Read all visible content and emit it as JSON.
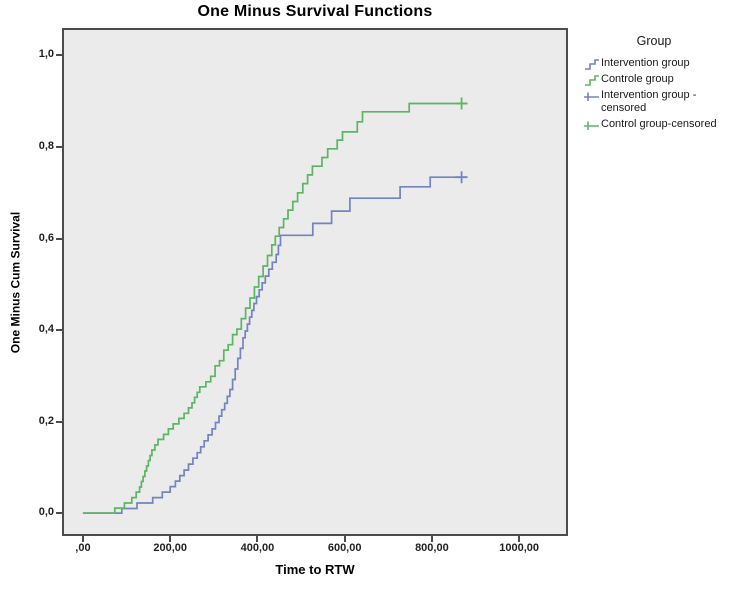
{
  "chart": {
    "title": "One Minus Survival Functions",
    "xlabel": "Time to RTW",
    "ylabel": "One Minus Cum Survival"
  },
  "legend": {
    "title": "Group",
    "items": [
      {
        "label": "Intervention group",
        "icon": "step-line-icon",
        "type": "step",
        "color": "#7283c1"
      },
      {
        "label": "Controle group",
        "icon": "step-line-icon",
        "type": "step",
        "color": "#5bb563"
      },
      {
        "label": "Intervention group - censored",
        "icon": "censored-plus-icon",
        "type": "censored",
        "color": "#7283c1"
      },
      {
        "label": "Control group-censored",
        "icon": "censored-plus-icon",
        "type": "censored",
        "color": "#5bb563"
      }
    ]
  },
  "colors": {
    "plot_background": "#ebebeb",
    "frame": "#4c4c4c",
    "intervention_blue": "#7283c1",
    "control_green": "#5bb563"
  },
  "chart_data": {
    "type": "line",
    "subtype": "step-survival",
    "title": "One Minus Survival Functions",
    "xlabel": "Time to RTW",
    "ylabel": "One Minus Cum Survival",
    "legend_title": "Group",
    "legend_position": "right",
    "grid": false,
    "x_domain": [
      -48,
      1112
    ],
    "y_domain": [
      -0.05,
      1.06
    ],
    "x_ticks": {
      "values": [
        0,
        200,
        400,
        600,
        800,
        1000
      ],
      "labels": [
        ",00",
        "200,00",
        "400,00",
        "600,00",
        "800,00",
        "1000,00"
      ]
    },
    "y_ticks": {
      "values": [
        0.0,
        0.2,
        0.4,
        0.6,
        0.8,
        1.0
      ],
      "labels": [
        "0,0",
        "0,2",
        "0,4",
        "0,6",
        "0,8",
        "1,0"
      ]
    },
    "series": [
      {
        "name": "Intervention group",
        "color": "#7283c1",
        "end": 880,
        "censored": [
          [
            868,
            0.734
          ]
        ],
        "steps": [
          [
            0,
            0
          ],
          [
            89,
            0.01
          ],
          [
            124,
            0.022
          ],
          [
            160,
            0.034
          ],
          [
            182,
            0.046
          ],
          [
            200,
            0.058
          ],
          [
            212,
            0.07
          ],
          [
            222,
            0.082
          ],
          [
            232,
            0.094
          ],
          [
            242,
            0.107
          ],
          [
            252,
            0.12
          ],
          [
            262,
            0.132
          ],
          [
            270,
            0.145
          ],
          [
            278,
            0.158
          ],
          [
            287,
            0.171
          ],
          [
            296,
            0.184
          ],
          [
            304,
            0.198
          ],
          [
            312,
            0.212
          ],
          [
            318,
            0.226
          ],
          [
            325,
            0.24
          ],
          [
            331,
            0.255
          ],
          [
            337,
            0.27
          ],
          [
            343,
            0.292
          ],
          [
            349,
            0.315
          ],
          [
            355,
            0.338
          ],
          [
            361,
            0.36
          ],
          [
            367,
            0.383
          ],
          [
            372,
            0.398
          ],
          [
            377,
            0.413
          ],
          [
            382,
            0.428
          ],
          [
            387,
            0.443
          ],
          [
            392,
            0.458
          ],
          [
            398,
            0.473
          ],
          [
            404,
            0.488
          ],
          [
            411,
            0.503
          ],
          [
            418,
            0.518
          ],
          [
            426,
            0.533
          ],
          [
            434,
            0.548
          ],
          [
            443,
            0.565
          ],
          [
            448,
            0.585
          ],
          [
            453,
            0.607
          ],
          [
            527,
            0.633
          ],
          [
            570,
            0.66
          ],
          [
            612,
            0.688
          ],
          [
            727,
            0.713
          ],
          [
            796,
            0.734
          ]
        ]
      },
      {
        "name": "Controle group",
        "color": "#5bb563",
        "end": 880,
        "censored": [
          [
            868,
            0.895
          ]
        ],
        "steps": [
          [
            0,
            0
          ],
          [
            73,
            0.011
          ],
          [
            95,
            0.022
          ],
          [
            112,
            0.034
          ],
          [
            122,
            0.046
          ],
          [
            130,
            0.057
          ],
          [
            134,
            0.069
          ],
          [
            138,
            0.08
          ],
          [
            142,
            0.092
          ],
          [
            146,
            0.103
          ],
          [
            150,
            0.115
          ],
          [
            154,
            0.126
          ],
          [
            158,
            0.138
          ],
          [
            165,
            0.149
          ],
          [
            172,
            0.161
          ],
          [
            185,
            0.172
          ],
          [
            196,
            0.184
          ],
          [
            207,
            0.195
          ],
          [
            220,
            0.207
          ],
          [
            232,
            0.218
          ],
          [
            242,
            0.23
          ],
          [
            250,
            0.241
          ],
          [
            256,
            0.253
          ],
          [
            262,
            0.264
          ],
          [
            268,
            0.276
          ],
          [
            282,
            0.287
          ],
          [
            293,
            0.299
          ],
          [
            303,
            0.322
          ],
          [
            313,
            0.333
          ],
          [
            323,
            0.356
          ],
          [
            333,
            0.368
          ],
          [
            343,
            0.39
          ],
          [
            353,
            0.402
          ],
          [
            363,
            0.425
          ],
          [
            373,
            0.448
          ],
          [
            383,
            0.47
          ],
          [
            393,
            0.494
          ],
          [
            403,
            0.517
          ],
          [
            413,
            0.54
          ],
          [
            423,
            0.563
          ],
          [
            433,
            0.586
          ],
          [
            441,
            0.605
          ],
          [
            450,
            0.624
          ],
          [
            460,
            0.643
          ],
          [
            470,
            0.662
          ],
          [
            481,
            0.681
          ],
          [
            492,
            0.7
          ],
          [
            504,
            0.72
          ],
          [
            515,
            0.739
          ],
          [
            526,
            0.758
          ],
          [
            548,
            0.777
          ],
          [
            561,
            0.796
          ],
          [
            583,
            0.815
          ],
          [
            595,
            0.833
          ],
          [
            629,
            0.855
          ],
          [
            641,
            0.877
          ],
          [
            748,
            0.895
          ]
        ]
      }
    ]
  }
}
